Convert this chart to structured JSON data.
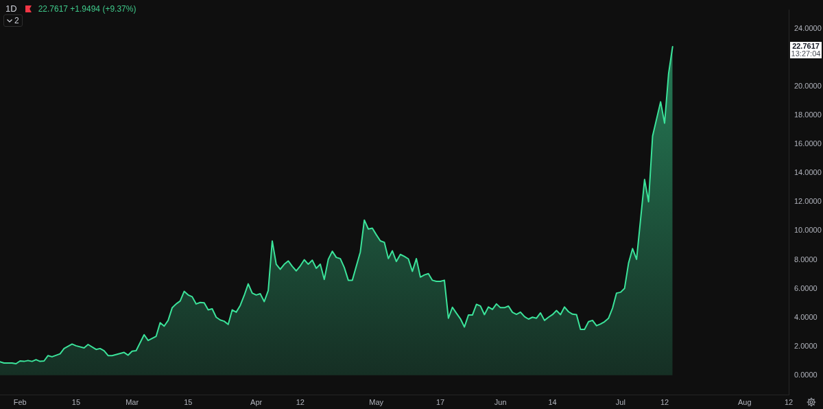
{
  "chart_data": {
    "type": "area",
    "title": "1D",
    "subtitle": "22.7617 +1.9494 (+9.37%)",
    "annotations": [
      "22.7617",
      "13:27:04",
      "2"
    ],
    "x": [
      "--01-27",
      "--01-28",
      "--01-30",
      "--01-31",
      "--02-01",
      "--02-02",
      "--02-03",
      "--02-04",
      "--02-05",
      "--02-06",
      "--02-07",
      "--02-08",
      "--02-09",
      "--02-11",
      "--02-12",
      "--02-14",
      "--02-15",
      "--02-17",
      "--02-18",
      "--02-20",
      "--02-21",
      "--02-22",
      "--02-23",
      "--02-24",
      "--02-27",
      "--02-28",
      "--03-01",
      "--03-02",
      "--03-04",
      "--03-05",
      "--03-07",
      "--03-08",
      "--03-09",
      "--03-10",
      "--03-11",
      "--03-12",
      "--03-13",
      "--03-14",
      "--03-15",
      "--03-16",
      "--03-17",
      "--03-18",
      "--03-19",
      "--03-20",
      "--03-21",
      "--03-22",
      "--03-23",
      "--03-24",
      "--03-25",
      "--03-26",
      "--03-27",
      "--03-28",
      "--03-29",
      "--03-30",
      "--03-31",
      "--04-01",
      "--04-02",
      "--04-03",
      "--04-04",
      "--04-05",
      "--04-06",
      "--04-07",
      "--04-08",
      "--04-09",
      "--04-10",
      "--04-11",
      "--04-12",
      "--04-13",
      "--04-14",
      "--04-15",
      "--04-16",
      "--04-17",
      "--04-18",
      "--04-19",
      "--04-20",
      "--04-21",
      "--04-22",
      "--04-23",
      "--04-24",
      "--04-25",
      "--04-27",
      "--04-28",
      "--04-29",
      "--04-30",
      "--05-01",
      "--05-02",
      "--05-03",
      "--05-04",
      "--05-05",
      "--05-06",
      "--05-07",
      "--05-08",
      "--05-09",
      "--05-10",
      "--05-11",
      "--05-12",
      "--05-13",
      "--05-14",
      "--05-15",
      "--05-16",
      "--05-17",
      "--05-18",
      "--05-19",
      "--05-20",
      "--05-21",
      "--05-22",
      "--05-23",
      "--05-24",
      "--05-25",
      "--05-26",
      "--05-27",
      "--05-28",
      "--05-29",
      "--05-30",
      "--05-31",
      "--06-01",
      "--06-02",
      "--06-03",
      "--06-04",
      "--06-05",
      "--06-06",
      "--06-07",
      "--06-08",
      "--06-09",
      "--06-10",
      "--06-11",
      "--06-12",
      "--06-13",
      "--06-14",
      "--06-15",
      "--06-16",
      "--06-17",
      "--06-18",
      "--06-19",
      "--06-20",
      "--06-21",
      "--06-22",
      "--06-23",
      "--06-24",
      "--06-25",
      "--06-26",
      "--06-27",
      "--06-28",
      "--06-29",
      "--06-30",
      "--07-01",
      "--07-02",
      "--07-03",
      "--07-04",
      "--07-05",
      "--07-07",
      "--07-08",
      "--07-09",
      "--07-11",
      "--07-12",
      "--07-13",
      "--07-14"
    ],
    "series": [
      {
        "color": "#3be39a",
        "values": [
          0.93,
          0.85,
          0.85,
          0.8,
          0.99,
          0.96,
          1.02,
          0.96,
          1.08,
          0.96,
          0.99,
          1.36,
          1.28,
          1.48,
          1.85,
          2.16,
          2.04,
          1.89,
          2.13,
          1.79,
          1.85,
          1.7,
          1.36,
          1.36,
          1.58,
          1.39,
          1.67,
          1.7,
          2.81,
          2.41,
          2.7,
          3.64,
          3.4,
          3.8,
          4.67,
          4.94,
          5.14,
          5.81,
          5.56,
          5.44,
          4.94,
          5.04,
          5.02,
          4.53,
          4.6,
          4.02,
          3.83,
          3.74,
          3.52,
          4.53,
          4.37,
          4.83,
          5.53,
          6.33,
          5.69,
          5.56,
          5.65,
          5.1,
          5.87,
          9.3,
          7.69,
          7.34,
          7.69,
          7.92,
          7.54,
          7.23,
          7.57,
          8.0,
          7.69,
          7.97,
          7.41,
          7.69,
          6.64,
          8.03,
          8.59,
          8.16,
          8.08,
          7.46,
          6.58,
          6.58,
          8.54,
          10.75,
          10.13,
          10.19,
          9.73,
          9.31,
          9.21,
          8.08,
          8.62,
          7.88,
          8.37,
          8.23,
          8.06,
          7.2,
          8.08,
          6.8,
          6.95,
          7.04,
          6.58,
          6.5,
          6.5,
          6.58,
          3.95,
          4.71,
          4.3,
          3.91,
          3.34,
          4.17,
          4.17,
          4.91,
          4.8,
          4.2,
          4.73,
          4.56,
          4.94,
          4.68,
          4.68,
          4.79,
          4.36,
          4.22,
          4.37,
          4.06,
          3.89,
          4.02,
          3.95,
          4.32,
          3.8,
          4.02,
          4.2,
          4.48,
          4.2,
          4.73,
          4.4,
          4.23,
          4.2,
          3.18,
          3.18,
          3.71,
          3.8,
          3.43,
          3.55,
          3.71,
          3.95,
          4.65,
          5.69,
          5.75,
          6.02,
          7.77,
          8.77,
          8.03,
          13.56,
          12.02,
          16.57,
          18.94,
          17.46,
          20.9,
          22.7617
        ]
      }
    ],
    "xlim": [
      "--01-27",
      "--08-12"
    ],
    "xticks": [
      {
        "value": "--02-01",
        "label": "Feb"
      },
      {
        "value": "--02-15",
        "label": "15"
      },
      {
        "value": "--03-01",
        "label": "Mar"
      },
      {
        "value": "--03-15",
        "label": "15"
      },
      {
        "value": "--04-01",
        "label": "Apr"
      },
      {
        "value": "--04-12",
        "label": "12"
      },
      {
        "value": "--05-01",
        "label": "May"
      },
      {
        "value": "--05-17",
        "label": "17"
      },
      {
        "value": "--06-01",
        "label": "Jun"
      },
      {
        "value": "--06-14",
        "label": "14"
      },
      {
        "value": "--07-01",
        "label": "Jul"
      },
      {
        "value": "--07-12",
        "label": "12"
      },
      {
        "value": "--08-01",
        "label": "Aug"
      },
      {
        "value": "--08-12",
        "label": "12"
      }
    ],
    "ylim": [
      -1.34,
      25.3
    ],
    "yticks": [
      {
        "value": 0,
        "label": "0.0000"
      },
      {
        "value": 2,
        "label": "2.0000"
      },
      {
        "value": 4,
        "label": "4.0000"
      },
      {
        "value": 6,
        "label": "6.0000"
      },
      {
        "value": 8,
        "label": "8.0000"
      },
      {
        "value": 10,
        "label": "10.0000"
      },
      {
        "value": 12,
        "label": "12.0000"
      },
      {
        "value": 14,
        "label": "14.0000"
      },
      {
        "value": 16,
        "label": "16.0000"
      },
      {
        "value": 18,
        "label": "18.0000"
      },
      {
        "value": 20,
        "label": "20.0000"
      },
      {
        "value": 24,
        "label": "24.0000"
      }
    ]
  }
}
